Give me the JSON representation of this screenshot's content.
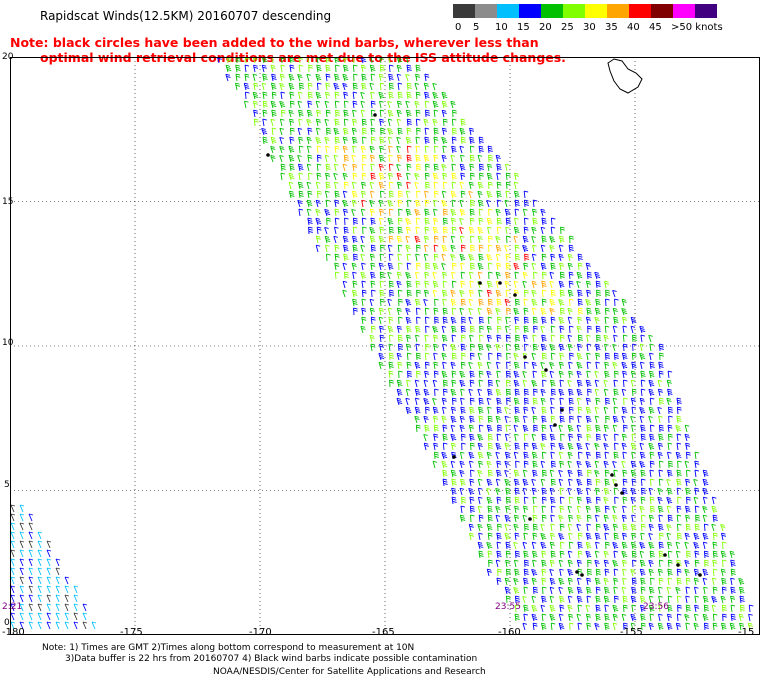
{
  "title": "Rapidscat Winds(12.5KM) 20160707 descending",
  "note_line1": "Note: black circles have been added to the wind barbs, wherever less than",
  "note_line2": "optimal wind retrieval conditions are met due to the ISS attitude changes.",
  "legend": {
    "labels": [
      "0",
      "5",
      "10",
      "15",
      "20",
      "25",
      "30",
      "35",
      "40",
      "45",
      ">50 knots"
    ],
    "colors": [
      "#3a3a3a",
      "#8c8c8c",
      "#00bfff",
      "#0000ff",
      "#00c000",
      "#80ff00",
      "#ffff00",
      "#ffa500",
      "#ff0000",
      "#800000",
      "#ff00ff",
      "#400080"
    ]
  },
  "axes": {
    "lat_labels": [
      "20",
      "15",
      "10",
      "5",
      "0"
    ],
    "lon_labels": [
      "-180",
      "-175",
      "-170",
      "-165",
      "-160",
      "-155",
      "-15"
    ]
  },
  "time_labels": [
    "2:21",
    "23:55",
    "23:56"
  ],
  "footer": {
    "line1": "Note: 1) Times are GMT 2)Times along bottom correspond to measurement at 10N",
    "line2": "3)Data buffer is 22 hrs from 20160707 4) Black wind barbs indicate possible contamination",
    "line3": "NOAA/NESDIS/Center for Satellite Applications and Research"
  }
}
